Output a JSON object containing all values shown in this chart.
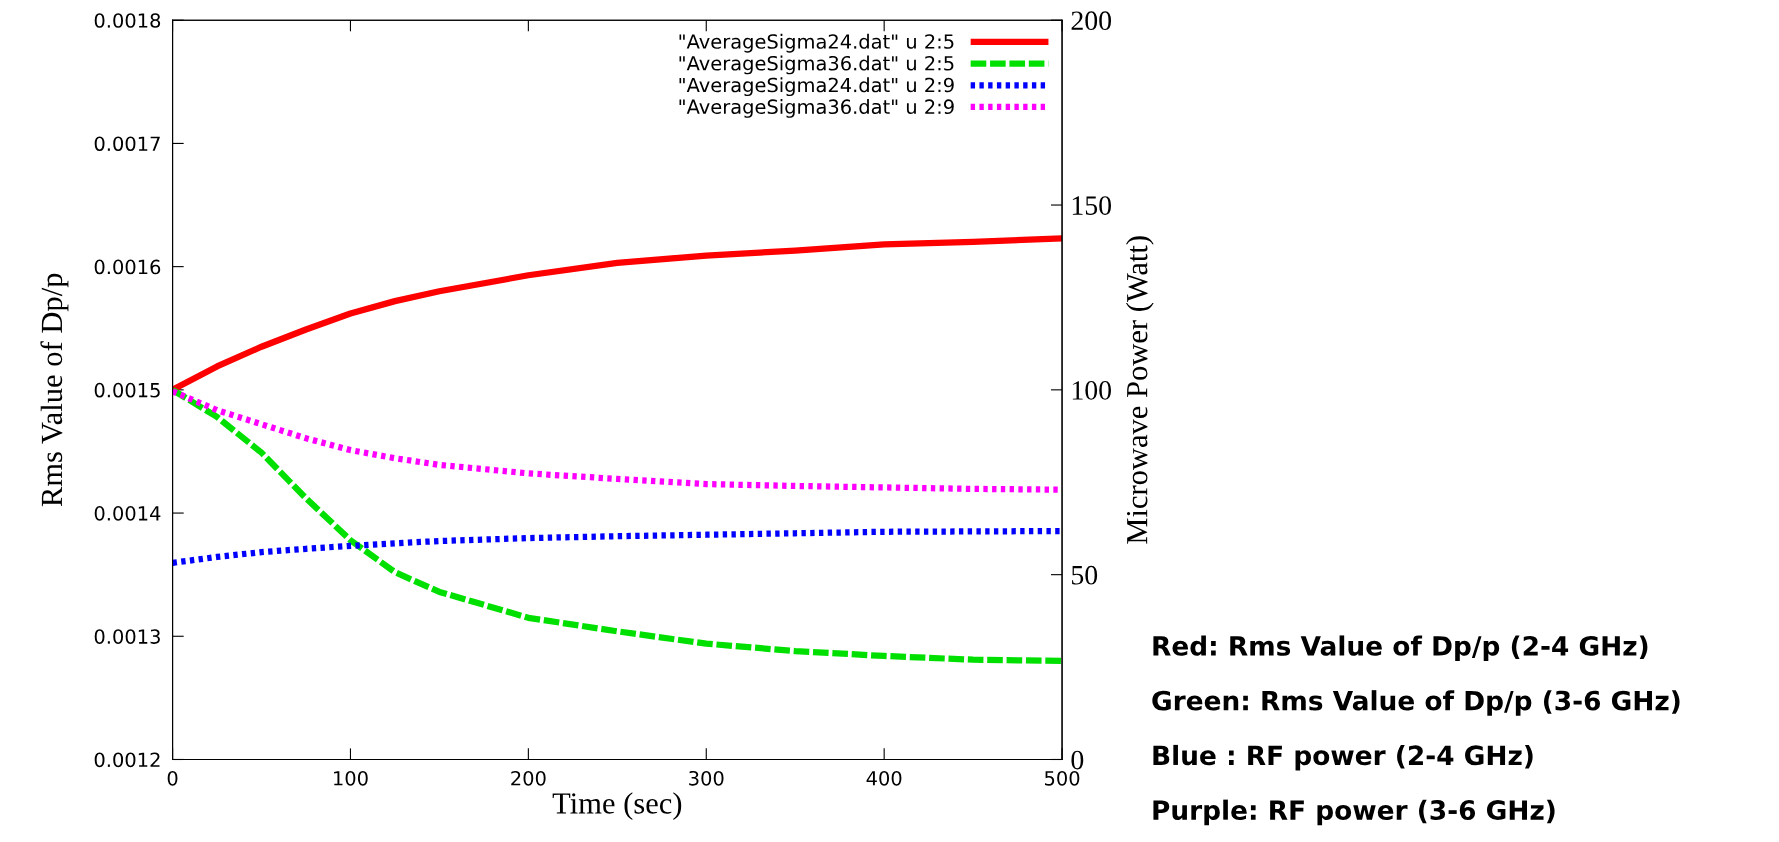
{
  "chart_data": {
    "type": "line",
    "xlabel": "Time (sec)",
    "ylabel": "Rms Value of Dp/p",
    "y2label": "Microwave Power (Watt)",
    "x": [
      0,
      25,
      50,
      75,
      100,
      125,
      150,
      200,
      250,
      300,
      350,
      400,
      450,
      500
    ],
    "xlim": [
      0,
      500
    ],
    "xticks": [
      0,
      100,
      200,
      300,
      400,
      500
    ],
    "ylim": [
      0.0012,
      0.0018
    ],
    "yticks": [
      0.0012,
      0.0013,
      0.0014,
      0.0015,
      0.0016,
      0.0017,
      0.0018
    ],
    "y2lim": [
      0,
      200
    ],
    "y2ticks": [
      0,
      50,
      100,
      150,
      200
    ],
    "grid": false,
    "legend": "top right",
    "marker": "none",
    "series": [
      {
        "name": "\"AverageSigma24.dat\" u 2:5",
        "color": "#ff0000",
        "line_style": "solid",
        "values": [
          0.0015,
          0.001519,
          0.001535,
          0.001549,
          0.001562,
          0.001572,
          0.00158,
          0.001593,
          0.001603,
          0.001609,
          0.001613,
          0.001618,
          0.00162,
          0.001623
        ]
      },
      {
        "name": "\"AverageSigma36.dat\" u 2:5",
        "color": "#00e000",
        "line_style": "dashed",
        "values": [
          0.0015,
          0.001478,
          0.001449,
          0.001412,
          0.001378,
          0.001352,
          0.001336,
          0.001315,
          0.001304,
          0.001294,
          0.001288,
          0.001284,
          0.001281,
          0.00128
        ]
      },
      {
        "name": "\"AverageSigma24.dat\" u 2:9",
        "color": "#0000ff",
        "line_style": "dotted",
        "axis": "y2",
        "values": [
          53.2,
          54.8,
          56.1,
          57.0,
          57.8,
          58.5,
          59.1,
          59.9,
          60.4,
          60.8,
          61.2,
          61.6,
          61.7,
          61.8
        ]
      },
      {
        "name": "\"AverageSigma36.dat\" u 2:9",
        "color": "#ff00ff",
        "line_style": "dotted",
        "axis": "y2",
        "values": [
          99.6,
          94.5,
          90.7,
          86.9,
          83.7,
          81.5,
          79.7,
          77.4,
          75.9,
          74.5,
          74.0,
          73.6,
          73.2,
          73.0
        ]
      }
    ],
    "annotations": [
      "Red: Rms Value of Dp/p (2-4 GHz)",
      "Green: Rms Value of Dp/p (3-6 GHz)",
      "Blue : RF power (2-4 GHz)",
      "Purple: RF power (3-6 GHz)"
    ]
  }
}
